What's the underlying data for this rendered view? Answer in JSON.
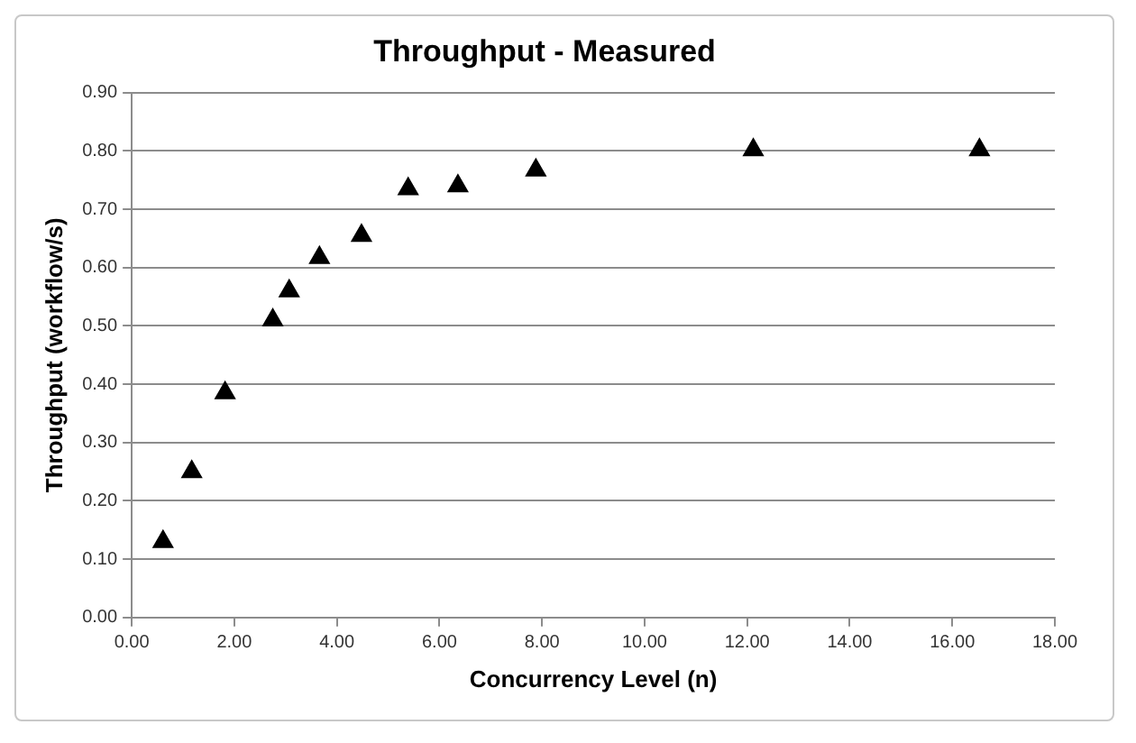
{
  "chart_data": {
    "type": "scatter",
    "title": "Throughput - Measured",
    "xlabel": "Concurrency Level (n)",
    "ylabel": "Throughput (workflow/s)",
    "x": [
      0.61,
      1.17,
      1.82,
      2.75,
      3.07,
      3.66,
      4.48,
      5.39,
      6.36,
      7.88,
      12.12,
      16.53
    ],
    "series": [
      {
        "color": "#000000",
        "values": [
          0.13,
          0.25,
          0.385,
          0.51,
          0.56,
          0.617,
          0.655,
          0.735,
          0.74,
          0.767,
          0.802,
          0.802
        ]
      }
    ],
    "xlim": [
      0,
      18
    ],
    "xticks": [
      {
        "value": 0,
        "label": "0.00"
      },
      {
        "value": 2,
        "label": "2.00"
      },
      {
        "value": 4,
        "label": "4.00"
      },
      {
        "value": 6,
        "label": "6.00"
      },
      {
        "value": 8,
        "label": "8.00"
      },
      {
        "value": 10,
        "label": "10.00"
      },
      {
        "value": 12,
        "label": "12.00"
      },
      {
        "value": 14,
        "label": "14.00"
      },
      {
        "value": 16,
        "label": "16.00"
      },
      {
        "value": 18,
        "label": "18.00"
      }
    ],
    "ylim": [
      0,
      0.9
    ],
    "yticks": [
      {
        "value": 0,
        "label": "0.00"
      },
      {
        "value": 0.1,
        "label": "0.10"
      },
      {
        "value": 0.2,
        "label": "0.20"
      },
      {
        "value": 0.3,
        "label": "0.30"
      },
      {
        "value": 0.4,
        "label": "0.40"
      },
      {
        "value": 0.5,
        "label": "0.50"
      },
      {
        "value": 0.6,
        "label": "0.60"
      },
      {
        "value": 0.7,
        "label": "0.70"
      },
      {
        "value": 0.8,
        "label": "0.80"
      },
      {
        "value": 0.9,
        "label": "0.90"
      }
    ],
    "grid": "y",
    "legend": false,
    "marker": "triangle"
  }
}
